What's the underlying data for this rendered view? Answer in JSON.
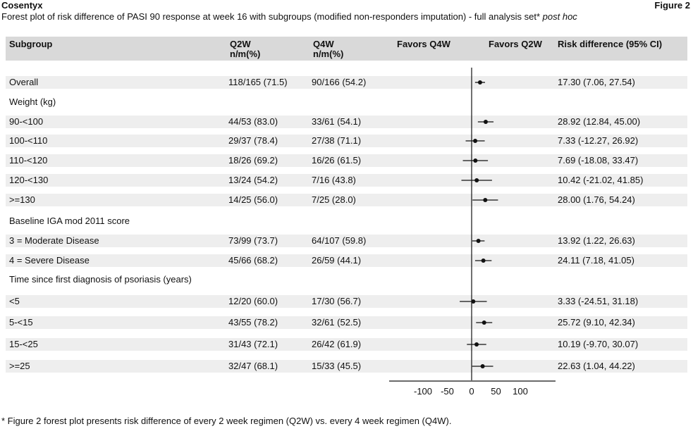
{
  "header": {
    "brand": "Cosentyx",
    "figure_label": "Figure 2",
    "title": "Forest plot of risk difference of PASI 90 response at week 16 with subgroups (modified non-responders imputation) - full analysis set*",
    "title_suffix": "post hoc"
  },
  "columns": {
    "subgroup": "Subgroup",
    "q2w": "Q2W",
    "q2w_sub": "n/m(%)",
    "q4w": "Q4W",
    "q4w_sub": "n/m(%)",
    "favors_q4w": "Favors Q4W",
    "favors_q2w": "Favors Q2W",
    "risk_diff": "Risk difference (95% CI)"
  },
  "footnote": "* Figure 2 forest plot presents risk difference of every 2 week regimen (Q2W) vs. every 4 week regimen (Q4W).",
  "colors": {
    "header_bg": "#d9d9d9",
    "stripe_bg": "#eeeeee",
    "marker": "#111111"
  },
  "chart_data": {
    "type": "forest",
    "xlim": [
      -170,
      170
    ],
    "x_ticks": [
      -100,
      -50,
      0,
      50,
      100
    ],
    "x_tick_labels": [
      "-100",
      "-50",
      "0",
      "50",
      "100"
    ],
    "reference_line": 0,
    "rows": [
      {
        "label": "Overall",
        "q2w": "118/165 (71.5)",
        "q4w": "90/166 (54.2)",
        "ci_text": "17.30 (7.06, 27.54)",
        "estimate": 17.3,
        "lower": 7.06,
        "upper": 27.54
      },
      {
        "label": "Weight (kg)",
        "header": true
      },
      {
        "label": "90-<100",
        "q2w": "44/53 (83.0)",
        "q4w": "33/61 (54.1)",
        "ci_text": "28.92 (12.84, 45.00)",
        "estimate": 28.92,
        "lower": 12.84,
        "upper": 45.0
      },
      {
        "label": "100-<110",
        "q2w": "29/37 (78.4)",
        "q4w": "27/38 (71.1)",
        "ci_text": "7.33 (-12.27, 26.92)",
        "estimate": 7.33,
        "lower": -12.27,
        "upper": 26.92
      },
      {
        "label": "110-<120",
        "q2w": "18/26 (69.2)",
        "q4w": "16/26 (61.5)",
        "ci_text": "7.69 (-18.08, 33.47)",
        "estimate": 7.69,
        "lower": -18.08,
        "upper": 33.47
      },
      {
        "label": "120-<130",
        "q2w": "13/24 (54.2)",
        "q4w": "7/16 (43.8)",
        "ci_text": "10.42 (-21.02, 41.85)",
        "estimate": 10.42,
        "lower": -21.02,
        "upper": 41.85
      },
      {
        "label": ">=130",
        "q2w": "14/25 (56.0)",
        "q4w": "7/25 (28.0)",
        "ci_text": "28.00 (1.76, 54.24)",
        "estimate": 28.0,
        "lower": 1.76,
        "upper": 54.24
      },
      {
        "label": "Baseline IGA mod 2011 score",
        "header": true
      },
      {
        "label": "3 = Moderate Disease",
        "q2w": "73/99 (73.7)",
        "q4w": "64/107 (59.8)",
        "ci_text": "13.92 (1.22, 26.63)",
        "estimate": 13.92,
        "lower": 1.22,
        "upper": 26.63
      },
      {
        "label": "4 = Severe Disease",
        "q2w": "45/66 (68.2)",
        "q4w": "26/59 (44.1)",
        "ci_text": "24.11 (7.18, 41.05)",
        "estimate": 24.11,
        "lower": 7.18,
        "upper": 41.05
      },
      {
        "label": "Time since first diagnosis of psoriasis (years)",
        "header": true
      },
      {
        "label": "<5",
        "q2w": "12/20 (60.0)",
        "q4w": "17/30 (56.7)",
        "ci_text": "3.33 (-24.51, 31.18)",
        "estimate": 3.33,
        "lower": -24.51,
        "upper": 31.18
      },
      {
        "label": "5-<15",
        "q2w": "43/55 (78.2)",
        "q4w": "32/61 (52.5)",
        "ci_text": "25.72 (9.10, 42.34)",
        "estimate": 25.72,
        "lower": 9.1,
        "upper": 42.34
      },
      {
        "label": "15-<25",
        "q2w": "31/43 (72.1)",
        "q4w": "26/42 (61.9)",
        "ci_text": "10.19 (-9.70, 30.07)",
        "estimate": 10.19,
        "lower": -9.7,
        "upper": 30.07
      },
      {
        "label": ">=25",
        "q2w": "32/47 (68.1)",
        "q4w": "15/33 (45.5)",
        "ci_text": "22.63 (1.04, 44.22)",
        "estimate": 22.63,
        "lower": 1.04,
        "upper": 44.22
      }
    ]
  }
}
